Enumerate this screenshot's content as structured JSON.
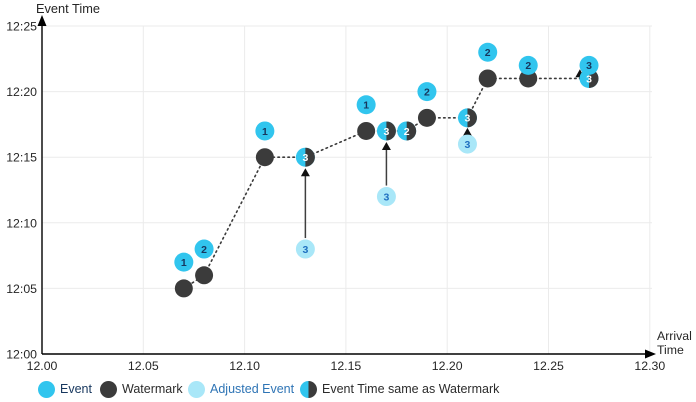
{
  "figure": {
    "y_axis_title": "Event Time",
    "x_axis_title_line1": "Arrival",
    "x_axis_title_line2": "Time"
  },
  "legend": {
    "items": [
      {
        "label": "Event",
        "type": "event"
      },
      {
        "label": "Watermark",
        "type": "watermark"
      },
      {
        "label": "Adjusted Event",
        "type": "adjusted"
      },
      {
        "label": "Event Time same as Watermark",
        "type": "same"
      }
    ]
  },
  "colors": {
    "event": "#31C5EE",
    "watermark": "#3B3B3B",
    "adjusted": "#A9E7F8",
    "event_number": "#17375E",
    "adjusted_number": "#1F6FC0",
    "same_number": "#FFFFFF",
    "event_label_text": "#17375E",
    "watermark_label_text": "#2B2B2B",
    "adjusted_label_text": "#2E74B5",
    "same_label_text": "#2B2B2B",
    "text": "#262626",
    "grid": "#EBEBEB",
    "axis": "#000000",
    "arrow": "#3F3F3F"
  },
  "chart_data": {
    "type": "scatter",
    "title": "",
    "xlabel": "Arrival Time",
    "ylabel": "Event Time",
    "grid": true,
    "legend_position": "bottom",
    "x_axis": {
      "tick_labels": [
        "12.00",
        "12.05",
        "12.10",
        "12.15",
        "12.20",
        "12.25",
        "12.30"
      ],
      "minutes_per_tick": 5
    },
    "y_axis": {
      "tick_labels": [
        "12:00",
        "12:05",
        "12:10",
        "12:15",
        "12:20",
        "12:25"
      ],
      "minutes_per_tick": 5
    },
    "events": [
      {
        "n": "1",
        "arrival": "12:07",
        "event_time": "12:07",
        "x": 7,
        "y": 7
      },
      {
        "n": "2",
        "arrival": "12:08",
        "event_time": "12:08",
        "x": 8,
        "y": 8
      },
      {
        "n": "1",
        "arrival": "12:11",
        "event_time": "12:17",
        "x": 11,
        "y": 17
      },
      {
        "n": "1",
        "arrival": "12:16",
        "event_time": "12:19",
        "x": 16,
        "y": 19
      },
      {
        "n": "2",
        "arrival": "12:19",
        "event_time": "12:20",
        "x": 19,
        "y": 20
      },
      {
        "n": "2",
        "arrival": "12:22",
        "event_time": "12:23",
        "x": 22,
        "y": 23
      },
      {
        "n": "2",
        "arrival": "12:24",
        "event_time": "12:22",
        "x": 24,
        "y": 22
      },
      {
        "n": "3",
        "arrival": "12:27",
        "event_time": "12:22",
        "x": 27,
        "y": 22
      }
    ],
    "watermarks": [
      {
        "arrival": "12:07",
        "watermark": "12:05",
        "x": 7,
        "y": 5
      },
      {
        "arrival": "12:08",
        "watermark": "12:06",
        "x": 8,
        "y": 6
      },
      {
        "arrival": "12:11",
        "watermark": "12:15",
        "x": 11,
        "y": 15
      },
      {
        "arrival": "12:16",
        "watermark": "12:17",
        "x": 16,
        "y": 17
      },
      {
        "arrival": "12:19",
        "watermark": "12:18",
        "x": 19,
        "y": 18
      },
      {
        "arrival": "12:22",
        "watermark": "12:21",
        "x": 22,
        "y": 21
      },
      {
        "arrival": "12:24",
        "watermark": "12:21",
        "x": 24,
        "y": 21
      }
    ],
    "same_as_watermark": [
      {
        "n": "3",
        "arrival": "12:13",
        "event_time": "12:15",
        "x": 13,
        "y": 15
      },
      {
        "n": "3",
        "arrival": "12:17",
        "event_time": "12:17",
        "x": 17,
        "y": 17
      },
      {
        "n": "2",
        "arrival": "12:18",
        "event_time": "12:17",
        "x": 18,
        "y": 17
      },
      {
        "n": "3",
        "arrival": "12:21",
        "event_time": "12:18",
        "x": 21,
        "y": 18
      },
      {
        "n": "3",
        "arrival": "12:27",
        "event_time": "12:21",
        "x": 27,
        "y": 21
      }
    ],
    "adjusted_events": [
      {
        "n": "3",
        "arrival": "12:13",
        "original_event_time": "12:08",
        "adjusted_to": "12:15",
        "x": 13,
        "y": 8
      },
      {
        "n": "3",
        "arrival": "12:17",
        "original_event_time": "12:12",
        "adjusted_to": "12:17",
        "x": 17,
        "y": 12
      },
      {
        "n": "3",
        "arrival": "12:21",
        "original_event_time": "12:16",
        "adjusted_to": "12:18",
        "x": 21,
        "y": 16
      }
    ],
    "watermark_line": [
      [
        7,
        5
      ],
      [
        8,
        6
      ],
      [
        11,
        15
      ],
      [
        13,
        15
      ],
      [
        16,
        17
      ],
      [
        18,
        17
      ],
      [
        19,
        18
      ],
      [
        21,
        18
      ],
      [
        22,
        21
      ],
      [
        24,
        21
      ],
      [
        26.9,
        21
      ]
    ],
    "arrows": [
      {
        "x": 13,
        "from": 8,
        "to": 15,
        "from_gap": 11,
        "to_gap": 11
      },
      {
        "x": 17,
        "from": 12,
        "to": 17,
        "from_gap": 11,
        "to_gap": 11
      },
      {
        "x": 21,
        "from": 16,
        "to": 18,
        "from_gap": 6,
        "to_gap": 10
      },
      {
        "x": 26.55,
        "from": 21,
        "to": 21.7,
        "from_gap": -1,
        "to_gap": 0
      }
    ]
  }
}
